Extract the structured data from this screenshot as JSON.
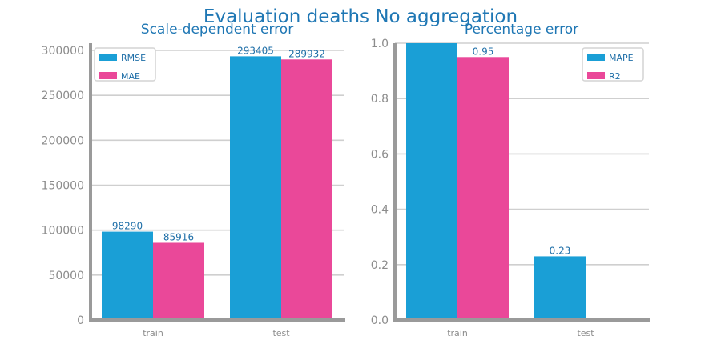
{
  "title": "Evaluation deaths No aggregation",
  "colors": {
    "series_a": "#1a9fd6",
    "series_b": "#ea4899",
    "title": "#1f77b4"
  },
  "chart_data": [
    {
      "type": "bar",
      "title": "Scale-dependent error",
      "categories": [
        "train",
        "test"
      ],
      "series": [
        {
          "name": "RMSE",
          "values": [
            98290,
            293405
          ]
        },
        {
          "name": "MAE",
          "values": [
            85916,
            289932
          ]
        }
      ],
      "data_labels": [
        [
          "98290",
          "293405"
        ],
        [
          "85916",
          "289932"
        ]
      ],
      "ylim": [
        0,
        308000
      ],
      "yticks": [
        0,
        50000,
        100000,
        150000,
        200000,
        250000,
        300000
      ],
      "ytick_labels": [
        "0",
        "50000",
        "100000",
        "150000",
        "200000",
        "250000",
        "300000"
      ],
      "grid": true,
      "legend": "top-left",
      "xlabel": "",
      "ylabel": ""
    },
    {
      "type": "bar",
      "title": "Percentage error",
      "categories": [
        "train",
        "test"
      ],
      "series": [
        {
          "name": "MAPE",
          "values": [
            1.0,
            0.23
          ]
        },
        {
          "name": "R2",
          "values": [
            0.95,
            0.0
          ]
        }
      ],
      "data_labels": [
        [
          "",
          "0.23"
        ],
        [
          "0.95",
          ""
        ]
      ],
      "ylim": [
        0,
        1.0
      ],
      "yticks": [
        0.0,
        0.2,
        0.4,
        0.6,
        0.8,
        1.0
      ],
      "ytick_labels": [
        "0.0",
        "0.2",
        "0.4",
        "0.6",
        "0.8",
        "1.0"
      ],
      "grid": true,
      "legend": "top-right",
      "xlabel": "",
      "ylabel": ""
    }
  ]
}
